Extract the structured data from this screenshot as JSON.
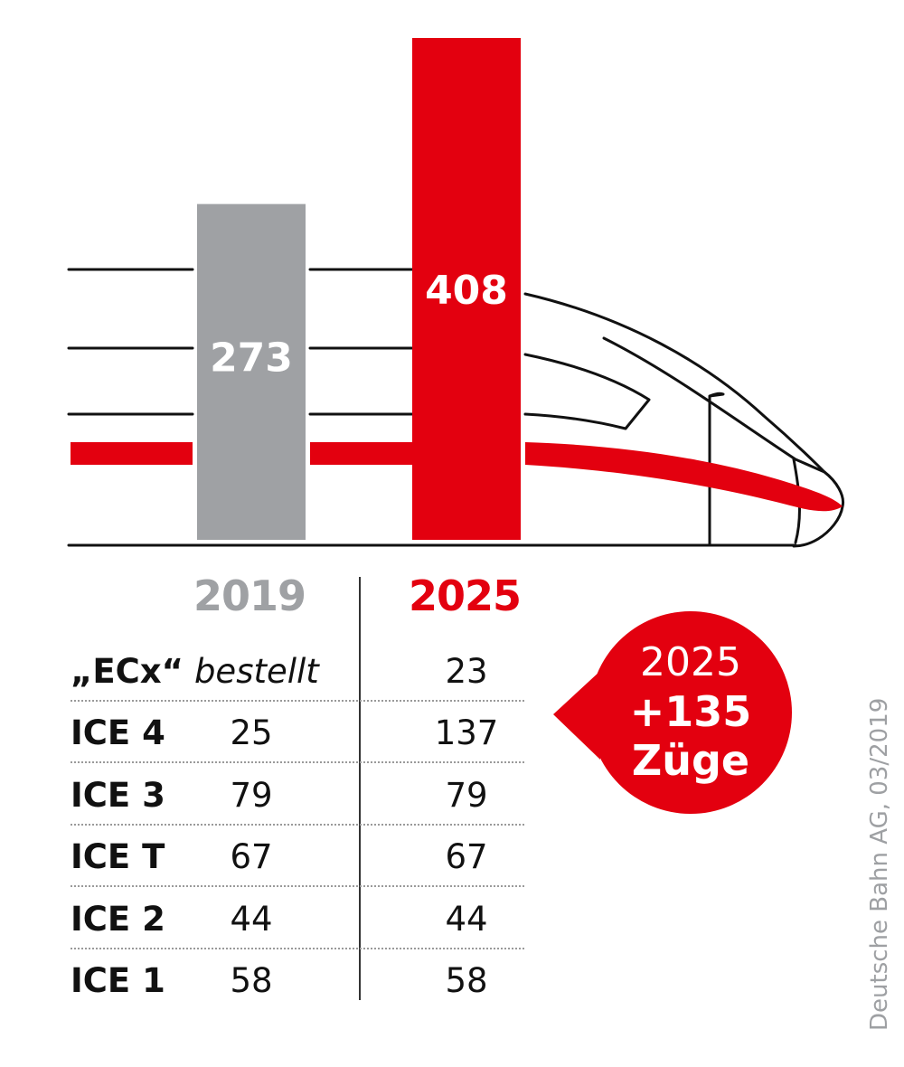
{
  "chart_data": {
    "type": "bar",
    "categories": [
      "2019",
      "2025"
    ],
    "values": [
      273,
      408
    ],
    "value_labels": [
      "273",
      "408"
    ],
    "colors": [
      "#9fa1a4",
      "#e3000f"
    ],
    "table": {
      "columns": [
        "2019",
        "2025"
      ],
      "rows": [
        {
          "name": "„ECx“",
          "note": "bestellt",
          "v2019": "",
          "v2025": "23"
        },
        {
          "name": "ICE 4",
          "note": "",
          "v2019": "25",
          "v2025": "137"
        },
        {
          "name": "ICE 3",
          "note": "",
          "v2019": "79",
          "v2025": "79"
        },
        {
          "name": "ICE T",
          "note": "",
          "v2019": "67",
          "v2025": "67"
        },
        {
          "name": "ICE 2",
          "note": "",
          "v2019": "44",
          "v2025": "44"
        },
        {
          "name": "ICE 1",
          "note": "",
          "v2019": "58",
          "v2025": "58"
        }
      ]
    },
    "callout": {
      "year": "2025",
      "delta": "+135",
      "unit": "Züge"
    },
    "source": "Deutsche Bahn AG, 03/2019"
  },
  "colors": {
    "red": "#e3000f",
    "gray": "#9fa1a4",
    "ink": "#111111",
    "source_gray": "#9ea0a3"
  },
  "icons": [
    "train-silhouette-icon"
  ]
}
